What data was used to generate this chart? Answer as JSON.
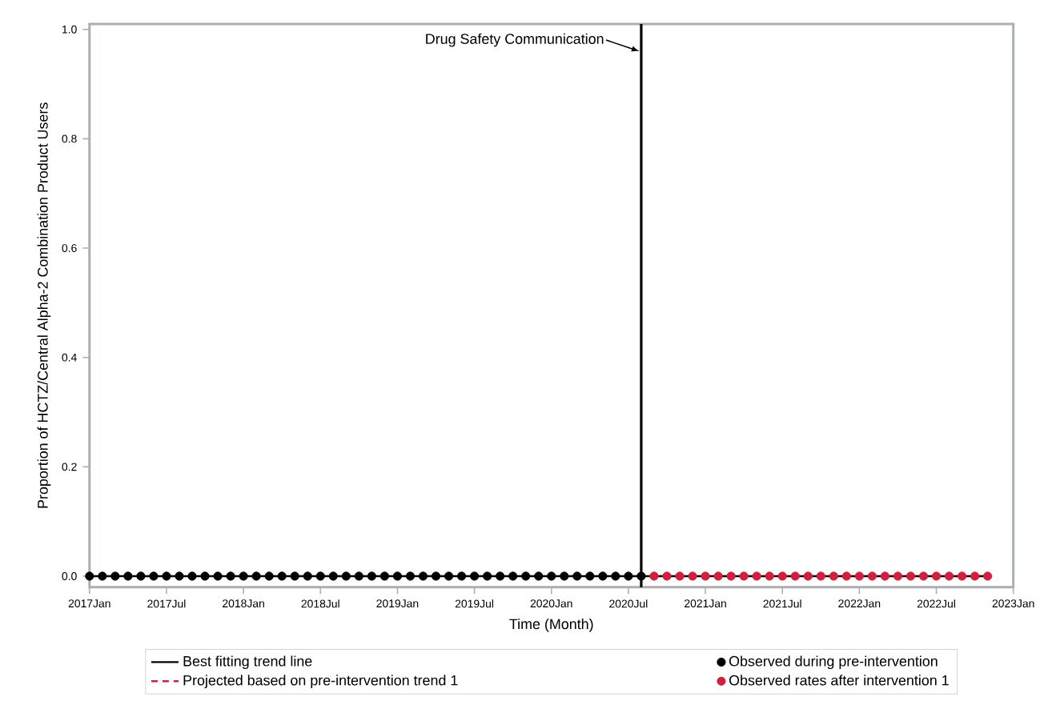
{
  "chart_data": {
    "type": "line",
    "xlabel": "Time (Month)",
    "ylabel": "Proportion of HCTZ/Central Alpha-2 Combination Product Users",
    "xlim": [
      "2017-01",
      "2023-01"
    ],
    "xticks": [
      {
        "value": "2017-01",
        "label": "2017Jan"
      },
      {
        "value": "2017-07",
        "label": "2017Jul"
      },
      {
        "value": "2018-01",
        "label": "2018Jan"
      },
      {
        "value": "2018-07",
        "label": "2018Jul"
      },
      {
        "value": "2019-01",
        "label": "2019Jan"
      },
      {
        "value": "2019-07",
        "label": "2019Jul"
      },
      {
        "value": "2020-01",
        "label": "2020Jan"
      },
      {
        "value": "2020-07",
        "label": "2020Jul"
      },
      {
        "value": "2021-01",
        "label": "2021Jan"
      },
      {
        "value": "2021-07",
        "label": "2021Jul"
      },
      {
        "value": "2022-01",
        "label": "2022Jan"
      },
      {
        "value": "2022-07",
        "label": "2022Jul"
      },
      {
        "value": "2023-01",
        "label": "2023Jan"
      }
    ],
    "ylim": [
      -0.02,
      1.01
    ],
    "yticks": [
      {
        "value": 0,
        "label": "0.0"
      },
      {
        "value": 0.2,
        "label": "0.2"
      },
      {
        "value": 0.4,
        "label": "0.4"
      },
      {
        "value": 0.6,
        "label": "0.6"
      },
      {
        "value": 0.8,
        "label": "0.8"
      },
      {
        "value": 1.0,
        "label": "1.0"
      }
    ],
    "grid": false,
    "legend": "bottom",
    "series": [
      {
        "name": "Best fitting trend line",
        "color": "#000000",
        "line_style": "solid",
        "marker": "none",
        "x": [
          "2017-01",
          "2022-11"
        ],
        "values": [
          0,
          0
        ]
      },
      {
        "name": "Projected based on pre-intervention trend 1",
        "type": "line",
        "color": "#d0203f",
        "line_style": "dashed",
        "marker": "none",
        "values": [
          null
        ]
      },
      {
        "name": "Observed during pre-intervention",
        "type": "scatter",
        "color": "#000000",
        "marker": "circle",
        "x": [
          "2017-01",
          "2017-02",
          "2017-03",
          "2017-04",
          "2017-05",
          "2017-06",
          "2017-07",
          "2017-08",
          "2017-09",
          "2017-10",
          "2017-11",
          "2017-12",
          "2018-01",
          "2018-02",
          "2018-03",
          "2018-04",
          "2018-05",
          "2018-06",
          "2018-07",
          "2018-08",
          "2018-09",
          "2018-10",
          "2018-11",
          "2018-12",
          "2019-01",
          "2019-02",
          "2019-03",
          "2019-04",
          "2019-05",
          "2019-06",
          "2019-07",
          "2019-08",
          "2019-09",
          "2019-10",
          "2019-11",
          "2019-12",
          "2020-01",
          "2020-02",
          "2020-03",
          "2020-04",
          "2020-05",
          "2020-06",
          "2020-07",
          "2020-08"
        ],
        "values": [
          0,
          0,
          0,
          0,
          0,
          0,
          0,
          0,
          0,
          0,
          0,
          0,
          0,
          0,
          0,
          0,
          0,
          0,
          0,
          0,
          0,
          0,
          0,
          0,
          0,
          0,
          0,
          0,
          0,
          0,
          0,
          0,
          0,
          0,
          0,
          0,
          0,
          0,
          0,
          0,
          0,
          0,
          0,
          0
        ]
      },
      {
        "name": "Observed rates after intervention 1",
        "type": "scatter",
        "color": "#d0203f",
        "marker": "circle",
        "x": [
          "2020-09",
          "2020-10",
          "2020-11",
          "2020-12",
          "2021-01",
          "2021-02",
          "2021-03",
          "2021-04",
          "2021-05",
          "2021-06",
          "2021-07",
          "2021-08",
          "2021-09",
          "2021-10",
          "2021-11",
          "2021-12",
          "2022-01",
          "2022-02",
          "2022-03",
          "2022-04",
          "2022-05",
          "2022-06",
          "2022-07",
          "2022-08",
          "2022-09",
          "2022-10",
          "2022-11"
        ],
        "values": [
          0,
          0,
          0,
          0,
          0,
          0,
          0,
          0,
          0,
          0,
          0,
          0,
          0,
          0,
          0,
          0,
          0,
          0,
          0,
          0,
          0,
          0,
          0,
          0,
          0,
          0,
          0
        ]
      }
    ],
    "ref_lines": [
      {
        "axis": "x",
        "value": "2020-08",
        "label": "Drug Safety Communication",
        "color": "#000000",
        "line_style": "solid"
      }
    ]
  }
}
